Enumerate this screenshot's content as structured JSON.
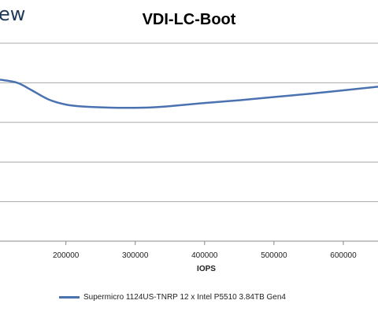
{
  "brand": {
    "text": "ew"
  },
  "chart_data": {
    "type": "line",
    "title": "VDI-LC-Boot",
    "xlabel": "IOPS",
    "ylabel": "",
    "x_ticks": [
      200000,
      300000,
      400000,
      500000,
      600000
    ],
    "xlim": [
      105000,
      650000
    ],
    "ylim": [
      0,
      5
    ],
    "grid": true,
    "legend_position": "bottom",
    "series": [
      {
        "name": "Supermicro 1124US-TNRP 12 x Intel P5510 3.84TB Gen4",
        "color": "#4a72b0",
        "x": [
          105000,
          130000,
          150000,
          175000,
          200000,
          225000,
          250000,
          275000,
          300000,
          325000,
          350000,
          400000,
          450000,
          500000,
          550000,
          600000,
          650000
        ],
        "y": [
          4.08,
          4.0,
          3.82,
          3.58,
          3.45,
          3.4,
          3.38,
          3.37,
          3.37,
          3.38,
          3.41,
          3.49,
          3.56,
          3.64,
          3.72,
          3.81,
          3.9
        ]
      }
    ]
  }
}
